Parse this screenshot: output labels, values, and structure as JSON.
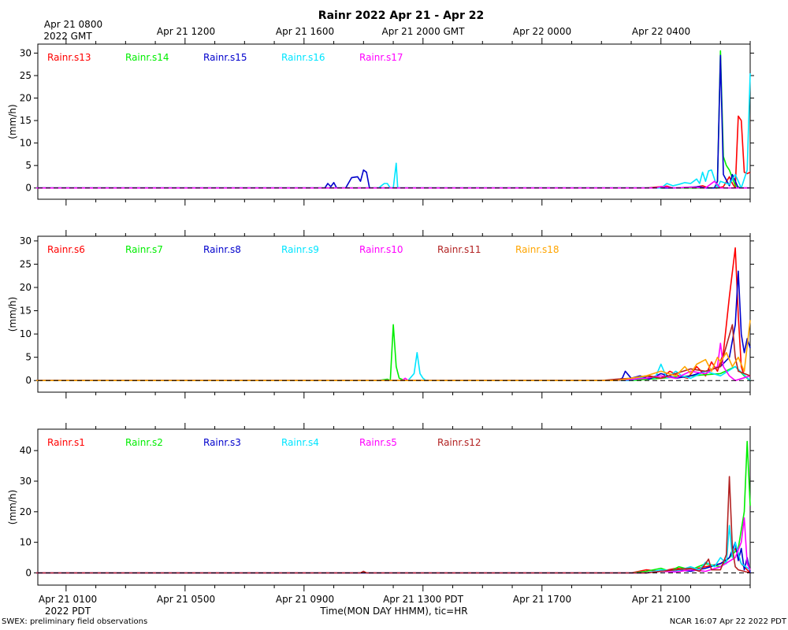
{
  "title": "Rainr 2022 Apr 21 - Apr 22",
  "top_axis": {
    "ticks": [
      "Apr 21 0800",
      "Apr 21 1200",
      "Apr 21 1600",
      "Apr 21 2000 GMT",
      "Apr 22 0000",
      "Apr 22 0400"
    ],
    "first_tick_second_line": "2022 GMT"
  },
  "bottom_axis": {
    "ticks": [
      "Apr 21 0100",
      "Apr 21 0500",
      "Apr 21 0900",
      "Apr 21 1300 PDT",
      "Apr 21 1700",
      "Apr 21 2100"
    ],
    "first_tick_second_line": "2022 PDT",
    "xlabel": "Time(MON DAY HHMM), tic=HR"
  },
  "footer": {
    "left": "SWEX: preliminary field observations",
    "right": "NCAR 16:07 Apr 22 2022 PDT"
  },
  "colors": {
    "red": "#ff0000",
    "green": "#00ee00",
    "blue": "#0000cc",
    "cyan": "#00e5ff",
    "magenta": "#ff00ff",
    "brown": "#b22222",
    "orange": "#ffa500",
    "zero_line": "#000000"
  },
  "chart_data": [
    {
      "type": "line",
      "ylabel": "(mm/h)",
      "xlim_hours_pdt": [
        0,
        24
      ],
      "ylim": [
        -2.5,
        32
      ],
      "yticks": [
        0,
        5,
        10,
        15,
        20,
        25,
        30
      ],
      "legend_placement": "top-left",
      "series": [
        {
          "name": "Rainr.s13",
          "color": "#ff0000",
          "x": [
            0,
            20.5,
            21.2,
            21.4,
            22.0,
            22.4,
            22.6,
            22.9,
            23.1,
            23.3,
            23.4,
            23.5,
            23.6,
            23.7,
            23.8,
            23.9,
            24.0
          ],
          "y": [
            0,
            0,
            0.4,
            0,
            0,
            0.5,
            0,
            0,
            0.3,
            2.5,
            1.0,
            0,
            16,
            15,
            3.5,
            3.2,
            3.5
          ]
        },
        {
          "name": "Rainr.s14",
          "color": "#00ee00",
          "x": [
            0,
            21.9,
            22.8,
            22.9,
            23.0,
            23.1,
            23.2,
            23.3,
            23.5,
            23.7,
            24.0
          ],
          "y": [
            0,
            0,
            0,
            1.5,
            30.5,
            7,
            5,
            4,
            0.5,
            0,
            0
          ]
        },
        {
          "name": "Rainr.s15",
          "color": "#0000cc",
          "x": [
            0,
            9.7,
            9.8,
            9.9,
            10.0,
            10.1,
            10.4,
            10.6,
            10.8,
            10.9,
            11.0,
            11.1,
            11.2,
            11.3,
            21.5,
            22.3,
            22.5,
            22.8,
            22.9,
            23.0,
            23.1,
            23.3,
            23.4,
            23.6,
            24.0
          ],
          "y": [
            0,
            0,
            1.0,
            0.3,
            1.2,
            0,
            0,
            2.3,
            2.5,
            1.5,
            4.0,
            3.5,
            0,
            0,
            0,
            0.3,
            0,
            0,
            1.5,
            29.5,
            3.0,
            0.5,
            3.0,
            0,
            0
          ]
        },
        {
          "name": "Rainr.s16",
          "color": "#00e5ff",
          "x": [
            0,
            11.5,
            11.7,
            11.8,
            11.9,
            12.0,
            12.1,
            12.15,
            12.3,
            12.4,
            21.0,
            21.2,
            21.4,
            21.6,
            21.8,
            22.0,
            22.2,
            22.3,
            22.4,
            22.5,
            22.6,
            22.7,
            22.9,
            23.0,
            23.3,
            23.5,
            23.7,
            23.9,
            24.0
          ],
          "y": [
            0,
            0,
            1.0,
            1.0,
            0,
            0,
            5.5,
            0,
            0,
            0,
            0,
            1.0,
            0.5,
            0.8,
            1.2,
            1.0,
            2.0,
            1.0,
            3.5,
            1.5,
            3.8,
            4.0,
            0,
            1.5,
            0.8,
            3.0,
            0,
            4.0,
            25.5
          ]
        },
        {
          "name": "Rainr.s17",
          "color": "#ff00ff",
          "x": [
            0,
            20.8,
            21.0,
            21.5,
            22.0,
            22.5,
            22.8,
            23.0,
            23.5,
            24.0
          ],
          "y": [
            0,
            0,
            0.3,
            0,
            0.2,
            0,
            1.5,
            0,
            0,
            0
          ]
        }
      ]
    },
    {
      "type": "line",
      "ylabel": "(mm/h)",
      "xlim_hours_pdt": [
        0,
        24
      ],
      "ylim": [
        -2.5,
        31
      ],
      "yticks": [
        0,
        5,
        10,
        15,
        20,
        25,
        30
      ],
      "legend_placement": "top-left",
      "series": [
        {
          "name": "Rainr.s6",
          "color": "#ff0000",
          "x": [
            0,
            20.0,
            20.3,
            20.6,
            21.0,
            21.3,
            21.6,
            21.9,
            22.2,
            22.5,
            22.7,
            22.9,
            23.1,
            23.3,
            23.5,
            23.6,
            23.7,
            23.8,
            24.0
          ],
          "y": [
            0,
            0,
            0.5,
            1.0,
            0.5,
            2.0,
            1.0,
            0.5,
            3.0,
            1.0,
            4.0,
            2.0,
            6.0,
            18.0,
            28.5,
            14.0,
            3.0,
            1.0,
            0
          ]
        },
        {
          "name": "Rainr.s7",
          "color": "#00ee00",
          "x": [
            0,
            11.5,
            11.8,
            11.9,
            12.0,
            12.1,
            12.2,
            12.4,
            12.6,
            20.0,
            21.0,
            22.0,
            23.0,
            23.5,
            23.8,
            24.0
          ],
          "y": [
            0,
            0,
            0.3,
            0,
            12.0,
            3.0,
            0.5,
            0,
            0,
            0,
            0.5,
            1.0,
            1.5,
            3.0,
            1.0,
            0
          ]
        },
        {
          "name": "Rainr.s8",
          "color": "#0000cc",
          "x": [
            0,
            19.5,
            19.7,
            19.8,
            20.0,
            20.3,
            20.6,
            21.0,
            21.5,
            22.0,
            22.5,
            23.0,
            23.3,
            23.5,
            23.6,
            23.7,
            23.8,
            23.9,
            24.0
          ],
          "y": [
            0,
            0,
            0.5,
            2.0,
            0.5,
            1.0,
            0.3,
            1.5,
            0.5,
            1.0,
            2.0,
            3.0,
            5.0,
            12.0,
            23.5,
            10.0,
            6.0,
            9.0,
            7.0
          ]
        },
        {
          "name": "Rainr.s9",
          "color": "#00e5ff",
          "x": [
            0,
            12.5,
            12.7,
            12.8,
            12.9,
            13.0,
            13.1,
            13.2,
            20.0,
            20.5,
            20.8,
            21.0,
            21.2,
            21.5,
            21.7,
            22.0,
            22.5,
            23.0,
            23.5,
            24.0
          ],
          "y": [
            0,
            0,
            1.5,
            6.0,
            1.5,
            0.5,
            0,
            0,
            0,
            1.0,
            0.5,
            3.5,
            0.5,
            2.0,
            1.0,
            0.5,
            2.0,
            1.0,
            3.0,
            0
          ]
        },
        {
          "name": "Rainr.s10",
          "color": "#ff00ff",
          "x": [
            0,
            12.3,
            12.4,
            12.5,
            19.5,
            20.5,
            21.0,
            21.5,
            22.0,
            22.5,
            22.9,
            23.0,
            23.1,
            23.3,
            23.5,
            24.0
          ],
          "y": [
            0,
            0,
            0.5,
            0,
            0,
            0.5,
            1.0,
            0.5,
            2.0,
            1.5,
            3.0,
            8.0,
            3.0,
            1.0,
            0,
            1.0
          ]
        },
        {
          "name": "Rainr.s11",
          "color": "#b22222",
          "x": [
            0,
            19.0,
            19.5,
            20.0,
            20.5,
            21.0,
            21.5,
            22.0,
            22.5,
            23.0,
            23.4,
            23.5,
            23.6,
            24.0
          ],
          "y": [
            0,
            0,
            0.3,
            0.5,
            1.0,
            0.5,
            1.5,
            2.5,
            2.0,
            3.0,
            12.0,
            5.0,
            2.0,
            1.0
          ]
        },
        {
          "name": "Rainr.s18",
          "color": "#ffa500",
          "x": [
            0,
            19.5,
            20.0,
            20.5,
            21.0,
            21.5,
            21.8,
            22.0,
            22.2,
            22.5,
            22.7,
            22.9,
            23.0,
            23.2,
            23.4,
            23.6,
            23.8,
            24.0
          ],
          "y": [
            0,
            0,
            0.5,
            1.0,
            2.0,
            1.0,
            3.0,
            1.5,
            3.5,
            4.5,
            2.0,
            5.0,
            4.0,
            6.0,
            3.0,
            5.0,
            2.0,
            13.0
          ]
        }
      ]
    },
    {
      "type": "line",
      "ylabel": "(mm/h)",
      "xlim_hours_pdt": [
        0,
        24
      ],
      "ylim": [
        -4,
        47
      ],
      "yticks": [
        0,
        10,
        20,
        30,
        40
      ],
      "legend_placement": "top-left",
      "series": [
        {
          "name": "Rainr.s1",
          "color": "#ff0000",
          "x": [
            0,
            20.0,
            20.5,
            21.0,
            21.5,
            22.0,
            22.5,
            23.0,
            23.3,
            23.5,
            23.7,
            24.0
          ],
          "y": [
            0,
            0,
            1.0,
            0.5,
            1.5,
            1.0,
            2.0,
            3.0,
            5.0,
            8.0,
            3.0,
            0
          ]
        },
        {
          "name": "Rainr.s2",
          "color": "#00ee00",
          "x": [
            0,
            20.0,
            20.5,
            21.0,
            21.3,
            21.6,
            22.0,
            22.5,
            23.0,
            23.3,
            23.6,
            23.8,
            23.9,
            24.0
          ],
          "y": [
            0,
            0,
            0.5,
            1.5,
            0.5,
            2.0,
            1.0,
            3.0,
            2.0,
            5.0,
            8.0,
            20.0,
            43.0,
            22.0
          ]
        },
        {
          "name": "Rainr.s3",
          "color": "#0000cc",
          "x": [
            0,
            20.5,
            21.0,
            21.5,
            22.0,
            22.5,
            23.0,
            23.3,
            23.5,
            23.6,
            23.7,
            23.8,
            23.9,
            24.0
          ],
          "y": [
            0,
            0,
            0.5,
            1.0,
            0.5,
            1.5,
            3.0,
            5.0,
            10.0,
            4.0,
            8.0,
            1.0,
            5.0,
            0
          ]
        },
        {
          "name": "Rainr.s4",
          "color": "#00e5ff",
          "x": [
            0,
            20.5,
            21.0,
            21.5,
            22.0,
            22.3,
            22.5,
            22.8,
            23.0,
            23.2,
            23.3,
            23.4,
            23.5,
            23.7,
            24.0
          ],
          "y": [
            0,
            0,
            1.0,
            0.5,
            2.0,
            1.0,
            3.5,
            2.0,
            5.0,
            3.0,
            15.5,
            5.0,
            10.0,
            3.0,
            1.0
          ]
        },
        {
          "name": "Rainr.s5",
          "color": "#ff00ff",
          "x": [
            0,
            20.5,
            21.0,
            21.5,
            22.0,
            22.5,
            23.0,
            23.5,
            23.7,
            23.8,
            23.9,
            24.0
          ],
          "y": [
            0,
            0,
            0.5,
            0.3,
            1.0,
            0.5,
            2.0,
            5.0,
            10.0,
            18.0,
            3.0,
            1.0
          ]
        },
        {
          "name": "Rainr.s12",
          "color": "#b22222",
          "x": [
            0,
            10.9,
            11.0,
            11.1,
            20.5,
            21.0,
            21.5,
            22.0,
            22.3,
            22.5,
            22.6,
            22.7,
            23.0,
            23.2,
            23.3,
            23.4,
            23.5,
            23.6,
            24.0
          ],
          "y": [
            0,
            0,
            0.5,
            0,
            0,
            0.5,
            1.0,
            1.5,
            0.5,
            3.0,
            4.5,
            1.0,
            1.0,
            6.0,
            31.5,
            8.0,
            2.0,
            1.0,
            0
          ]
        }
      ]
    }
  ]
}
